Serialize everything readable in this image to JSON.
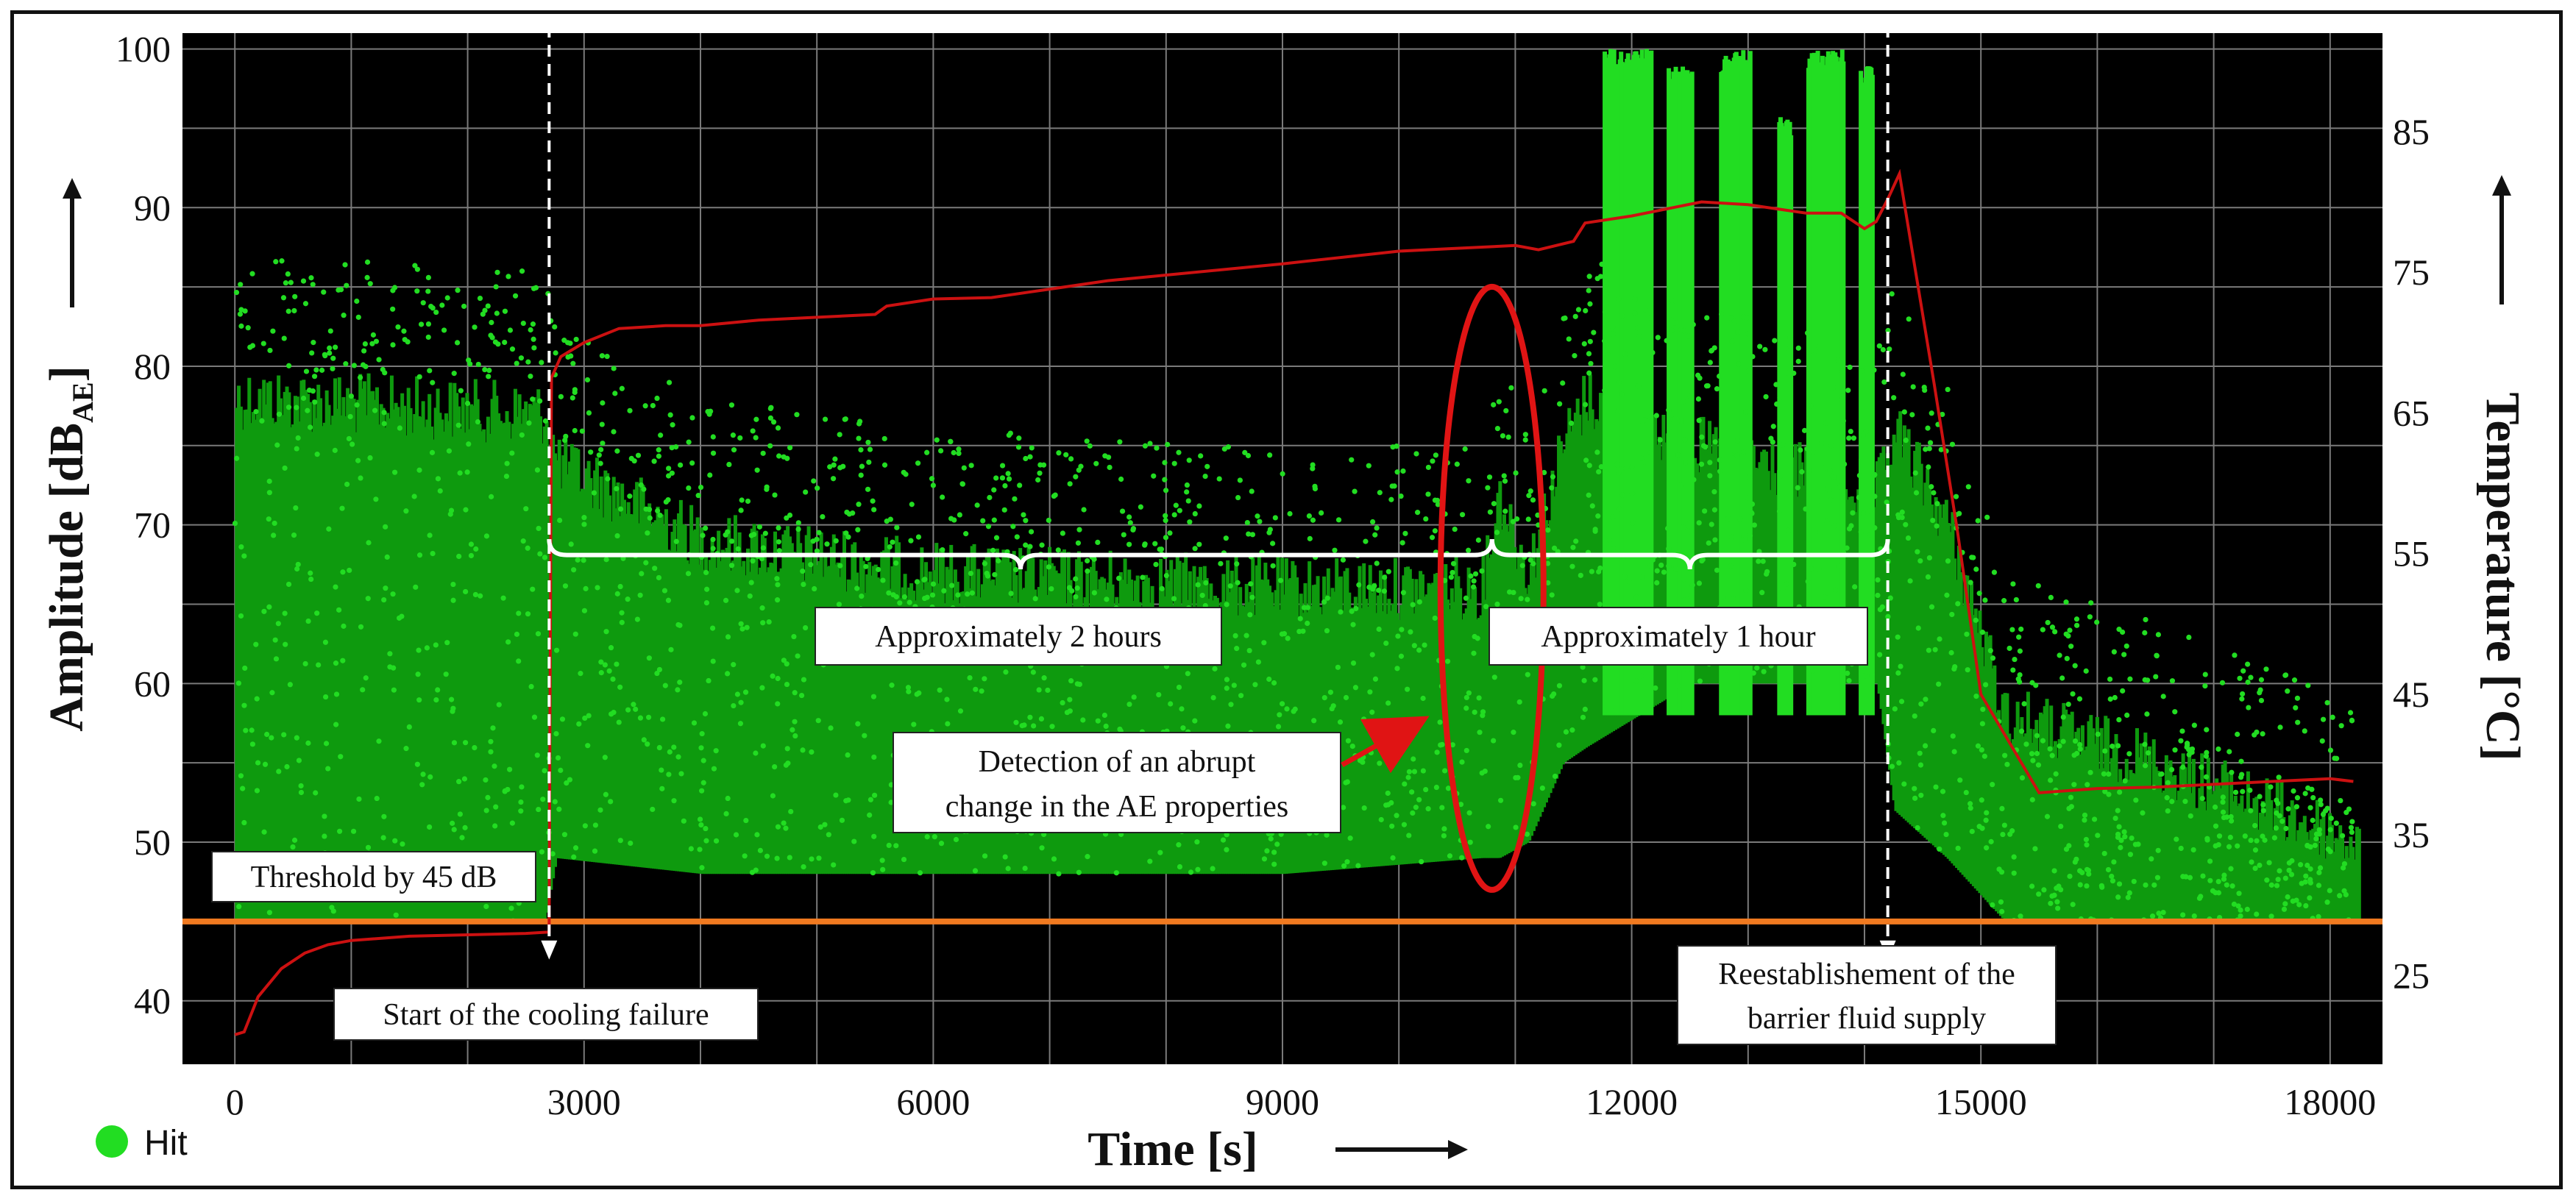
{
  "chart_data": {
    "type": "scatter",
    "xlabel": "Time [s]",
    "ylabel_main": "Amplitude [dB",
    "ylabel_sub": "AE",
    "ylabel_close": "]",
    "y2label": "Temperature [°C]",
    "xlim": [
      -450,
      18450
    ],
    "ylim": [
      36,
      101
    ],
    "y2lim": [
      18.7,
      92
    ],
    "x_ticks": [
      0,
      3000,
      6000,
      9000,
      12000,
      15000,
      18000
    ],
    "x_tick_labels": [
      "0",
      "3000",
      "6000",
      "9000",
      "12000",
      "15000",
      "18000"
    ],
    "y_ticks": [
      40,
      50,
      60,
      70,
      80,
      90,
      100
    ],
    "y_tick_labels": [
      "40",
      "50",
      "60",
      "70",
      "80",
      "90",
      "100"
    ],
    "y2_ticks": [
      25,
      35,
      45,
      55,
      65,
      75,
      85
    ],
    "y2_tick_labels": [
      "25",
      "35",
      "45",
      "55",
      "65",
      "75",
      "85"
    ],
    "grid": true,
    "colors": {
      "background": "#000000",
      "hits": "#22dd22",
      "hits_dark": "#0e9a0e",
      "temperature": "#cc1111",
      "threshold": "#f07a20",
      "ellipse": "#e01414",
      "markers": "#ffffff",
      "grid": "#7a7a7a"
    },
    "legend": {
      "label": "Hit",
      "position": "bottom-left"
    },
    "threshold_db": 45,
    "series": [
      {
        "name": "Hit",
        "kind": "scatter-density",
        "description_envelope": [
          {
            "x": 0,
            "lo": 45,
            "hi": 80
          },
          {
            "x": 2650,
            "lo": 45,
            "hi": 79
          },
          {
            "x": 2750,
            "lo": 49,
            "hi": 76
          },
          {
            "x": 4000,
            "lo": 48,
            "hi": 71
          },
          {
            "x": 6000,
            "lo": 48,
            "hi": 69
          },
          {
            "x": 9000,
            "lo": 48,
            "hi": 68
          },
          {
            "x": 10700,
            "lo": 49,
            "hi": 68
          },
          {
            "x": 10850,
            "lo": 49,
            "hi": 74
          },
          {
            "x": 11100,
            "lo": 50,
            "hi": 69
          },
          {
            "x": 11400,
            "lo": 55,
            "hi": 77
          },
          {
            "x": 11600,
            "lo": 56,
            "hi": 80
          },
          {
            "x": 12500,
            "lo": 60,
            "hi": 77
          },
          {
            "x": 14100,
            "lo": 60,
            "hi": 74
          },
          {
            "x": 14250,
            "lo": 52,
            "hi": 78
          },
          {
            "x": 14700,
            "lo": 49,
            "hi": 72
          },
          {
            "x": 15200,
            "lo": 45,
            "hi": 60
          },
          {
            "x": 16500,
            "lo": 45,
            "hi": 57
          },
          {
            "x": 18200,
            "lo": 45,
            "hi": 52
          }
        ],
        "saturated_bursts": [
          {
            "x0": 11750,
            "x1": 12150,
            "top": 100
          },
          {
            "x0": 12300,
            "x1": 12500,
            "top": 99
          },
          {
            "x0": 12750,
            "x1": 13000,
            "top": 100
          },
          {
            "x0": 13250,
            "x1": 13350,
            "top": 96
          },
          {
            "x0": 13500,
            "x1": 13800,
            "top": 100
          },
          {
            "x0": 13950,
            "x1": 14050,
            "top": 99
          }
        ]
      },
      {
        "name": "Temperature",
        "kind": "line",
        "x": [
          0,
          80,
          200,
          400,
          600,
          800,
          1000,
          1500,
          2000,
          2500,
          2700,
          2720,
          2800,
          3000,
          3300,
          3700,
          4000,
          4500,
          5000,
          5500,
          5600,
          6000,
          6500,
          7000,
          7500,
          8000,
          9000,
          10000,
          10500,
          11000,
          11200,
          11500,
          11600,
          12000,
          12600,
          13000,
          13500,
          13800,
          14000,
          14100,
          14200,
          14300,
          14450,
          14600,
          14800,
          15000,
          15500,
          16000,
          16500,
          17000,
          17500,
          18000,
          18200
        ],
        "y": [
          20.8,
          21.0,
          23.5,
          25.5,
          26.6,
          27.2,
          27.5,
          27.8,
          27.9,
          28.0,
          28.1,
          67.5,
          69.0,
          70.0,
          71.0,
          71.2,
          71.2,
          71.6,
          71.8,
          72.0,
          72.6,
          73.1,
          73.2,
          73.8,
          74.4,
          74.8,
          75.6,
          76.5,
          76.7,
          76.9,
          76.6,
          77.2,
          78.5,
          79.0,
          80.0,
          79.8,
          79.2,
          79.2,
          78.1,
          78.6,
          80.2,
          82.0,
          74.5,
          67.0,
          56.5,
          45.0,
          38.0,
          38.3,
          38.4,
          38.6,
          38.8,
          39.0,
          38.8
        ]
      }
    ],
    "annotations": [
      {
        "text": "Threshold by 45 dB"
      },
      {
        "text": "Start of the cooling failure"
      },
      {
        "text": "Approximately 2 hours"
      },
      {
        "text": "Approximately 1 hour"
      },
      {
        "text_line1": "Detection of an abrupt",
        "text_line2": "change in the AE properties"
      },
      {
        "text_line1": "Reestablishement of the",
        "text_line2": "barrier fluid supply"
      }
    ],
    "event_markers_x": [
      2700,
      14200
    ],
    "brace_1": {
      "x0": 2700,
      "x1": 10800
    },
    "brace_2": {
      "x0": 10800,
      "x1": 14200
    },
    "highlight_ellipse": {
      "cx": 10800,
      "cy": 66
    }
  }
}
